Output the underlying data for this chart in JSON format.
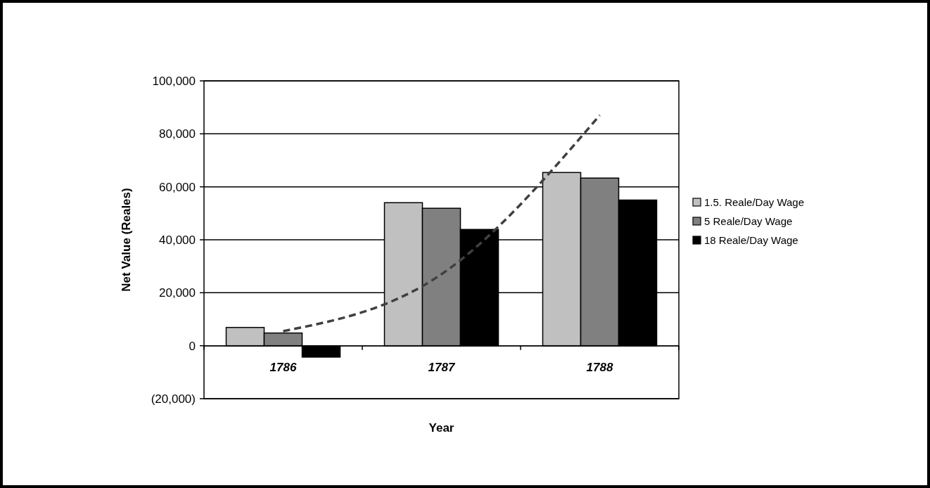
{
  "chart_data": {
    "type": "bar",
    "xlabel": "Year",
    "ylabel": "Net Value (Reales)",
    "categories": [
      "1786",
      "1787",
      "1788"
    ],
    "series": [
      {
        "name": "1.5. Reale/Day Wage",
        "color": "#c0c0c0",
        "values": [
          6900,
          54000,
          65400
        ]
      },
      {
        "name": "5 Reale/Day Wage",
        "color": "#808080",
        "values": [
          4800,
          51900,
          63300
        ]
      },
      {
        "name": "18 Reale/Day Wage",
        "color": "#000000",
        "values": [
          -4300,
          43900,
          55000
        ]
      },
      {
        "type": "line",
        "color": "#404040",
        "line_style": "dashed",
        "values": [
          5500,
          27000,
          87000
        ]
      }
    ],
    "ylim": [
      -20000,
      100000
    ],
    "yticks": [
      {
        "value": -20000,
        "label": "(20,000)"
      },
      {
        "value": 0,
        "label": "0"
      },
      {
        "value": 20000,
        "label": "20,000"
      },
      {
        "value": 40000,
        "label": "40,000"
      },
      {
        "value": 60000,
        "label": "60,000"
      },
      {
        "value": 80000,
        "label": "80,000"
      },
      {
        "value": 100000,
        "label": "100,000"
      }
    ],
    "grid": "y",
    "legend": "right"
  }
}
